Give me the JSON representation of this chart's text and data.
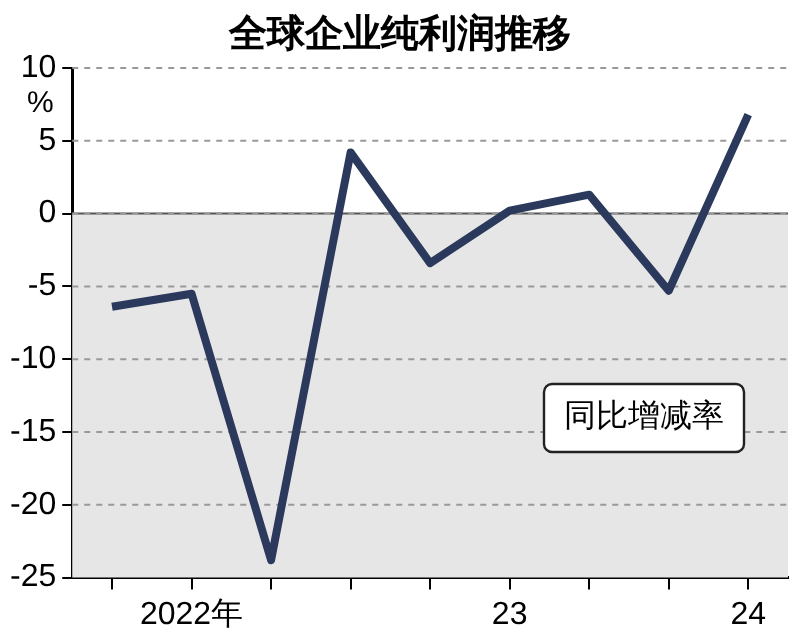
{
  "chart_data": {
    "type": "line",
    "title": "全球企业纯利润推移",
    "ylabel": "%",
    "categories": [
      null,
      "2022年",
      null,
      null,
      null,
      "23",
      null,
      null,
      "24"
    ],
    "series": [
      {
        "color": "#2b3a5c",
        "values": [
          -6.4,
          -5.5,
          -23.8,
          4.2,
          -3.4,
          0.2,
          1.3,
          -5.3,
          6.8
        ]
      }
    ],
    "ylim": [
      -25,
      10
    ],
    "yticks": [
      -25,
      -20,
      -15,
      -10,
      -5,
      0,
      5,
      10
    ],
    "grid": "y",
    "line_style": "solid",
    "marker": "none",
    "legend": false,
    "bands": [
      {
        "axis": "y",
        "from": -25,
        "to": 0,
        "color": "#e6e6e6"
      }
    ],
    "annotations": [
      "同比增减率"
    ]
  }
}
